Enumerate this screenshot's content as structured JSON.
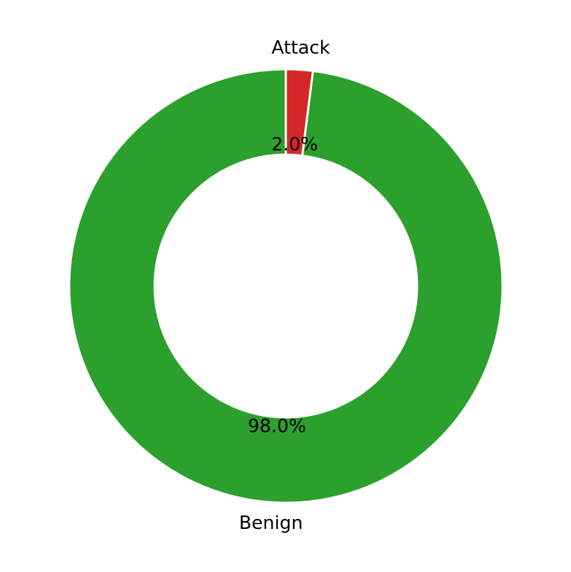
{
  "chart_data": {
    "type": "pie",
    "variant": "donut",
    "title": "",
    "categories": [
      "Attack",
      "Benign"
    ],
    "values": [
      2.0,
      98.0
    ],
    "value_labels": [
      "2.0%",
      "98.0%"
    ],
    "colors": [
      "#d62728",
      "#2ca02c"
    ],
    "start_angle_deg": 90,
    "direction": "clockwise",
    "legend": "none",
    "grid": false
  }
}
